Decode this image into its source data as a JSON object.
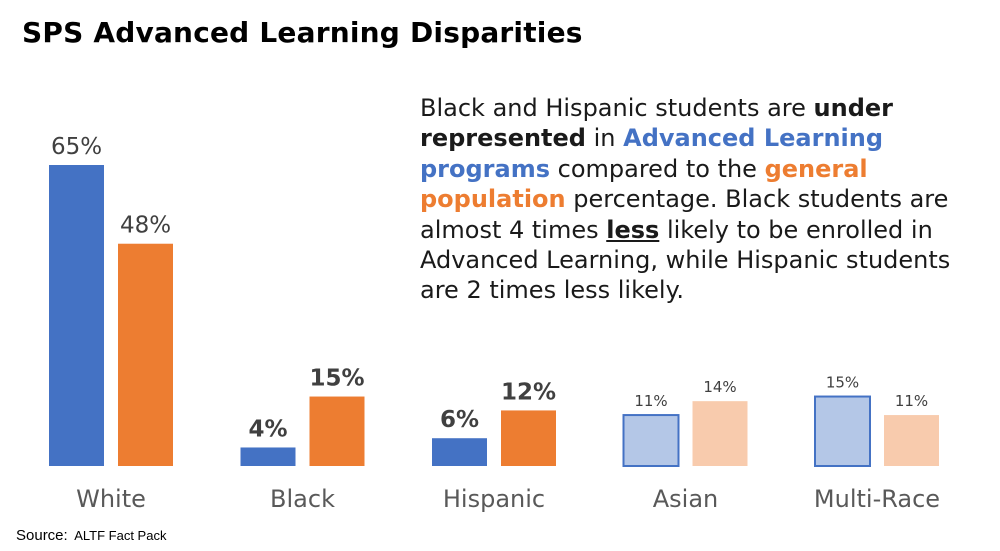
{
  "title": "SPS Advanced Learning Disparities",
  "note": {
    "p1": "Black and Hispanic students are ",
    "under_represented": "under represented",
    "p2": " in ",
    "advanced_learning_programs": "Advanced Learning programs",
    "p3": " compared to the ",
    "general_population": "general population",
    "p4": " percentage.  Black students are almost 4 times ",
    "less": "less",
    "p5": " likely to be enrolled in Advanced Learning, while Hispanic students are 2 times less likely."
  },
  "source": {
    "label": "Source:",
    "text": "ALTF Fact Pack"
  },
  "colors": {
    "advanced_learning": "#4472C4",
    "general_population": "#ED7D31",
    "advanced_learning_light": "#B4C7E7",
    "general_population_light": "#F8CBAD"
  },
  "chart_data": {
    "type": "bar",
    "categories": [
      "White",
      "Black",
      "Hispanic",
      "Asian",
      "Multi-Race"
    ],
    "series": [
      {
        "values": [
          65,
          4,
          6,
          11,
          15
        ],
        "data_labels": [
          "65%",
          "4%",
          "6%",
          "11%",
          "15%"
        ]
      },
      {
        "values": [
          48,
          15,
          12,
          14,
          11
        ],
        "data_labels": [
          "48%",
          "15%",
          "12%",
          "14%",
          "11%"
        ]
      }
    ],
    "ylim": [
      0,
      65
    ],
    "grid": false,
    "legend": "none"
  }
}
